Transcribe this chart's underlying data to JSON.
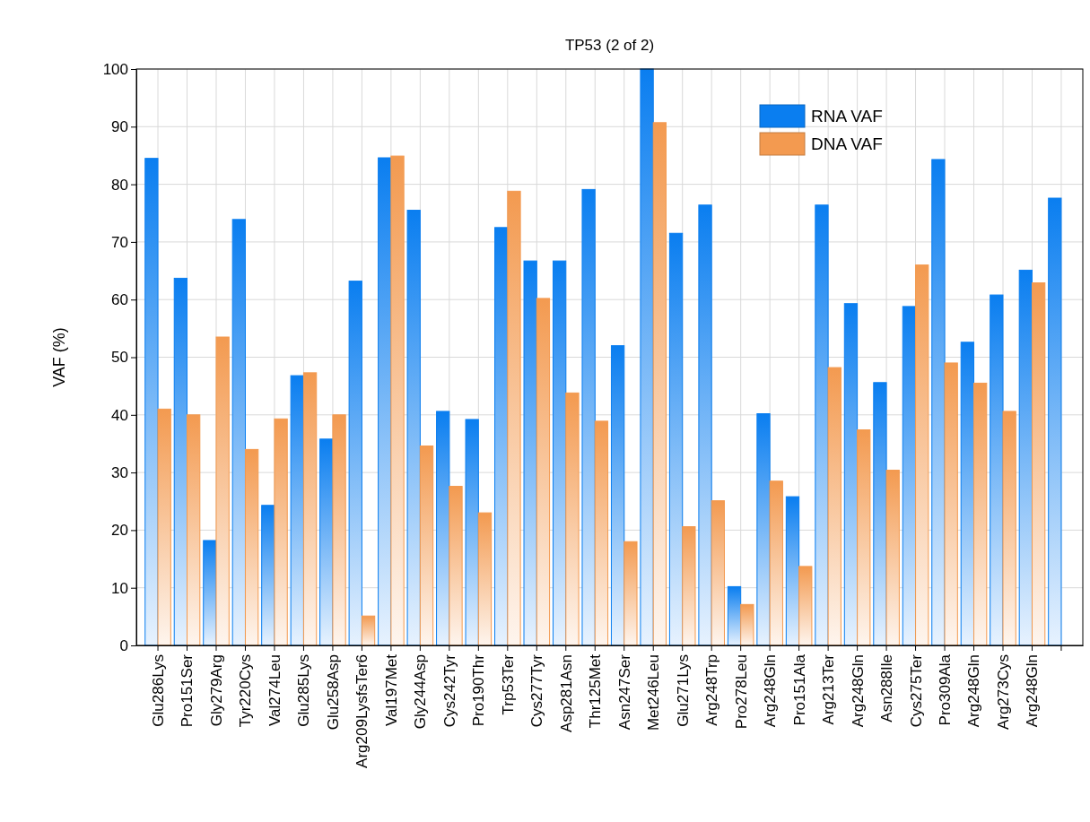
{
  "chart_data": {
    "type": "bar",
    "title": "TP53 (2 of 2)",
    "ylabel": "VAF (%)",
    "categories": [
      "Glu286Lys",
      "Pro151Ser",
      "Gly279Arg",
      "Tyr220Cys",
      "Val274Leu",
      "Glu285Lys",
      "Glu258Asp",
      "Arg209LysfsTer6",
      "Val197Met",
      "Gly244Asp",
      "Cys242Tyr",
      "Pro190Thr",
      "Trp53Ter",
      "Cys277Tyr",
      "Asp281Asn",
      "Thr125Met",
      "Asn247Ser",
      "Met246Leu",
      "Glu271Lys",
      "Arg248Trp",
      "Pro278Leu",
      "Arg248Gln",
      "Pro151Ala",
      "Arg213Ter",
      "Arg248Gln",
      "Asn288Ile",
      "Cys275Ter",
      "Pro309Ala",
      "Arg248Gln",
      "Arg273Cys",
      "Arg248Gln",
      null
    ],
    "series": [
      {
        "name": "RNA VAF",
        "color": "#0a7ef0",
        "values": [
          84.5,
          63.7,
          18.2,
          73.9,
          24.3,
          46.8,
          35.8,
          63.2,
          84.6,
          75.5,
          40.6,
          39.2,
          72.5,
          66.7,
          66.7,
          79.1,
          52,
          100,
          71.5,
          76.4,
          10.2,
          40.2,
          25.8,
          76.4,
          59.3,
          45.6,
          58.8,
          84.3,
          52.6,
          60.8,
          65.1,
          77.6
        ]
      },
      {
        "name": "DNA VAF",
        "color": "#f39a50",
        "values": [
          41,
          40,
          53.5,
          34,
          39.3,
          47.3,
          40,
          5.1,
          84.9,
          34.6,
          27.6,
          23,
          78.8,
          60.2,
          43.8,
          38.9,
          18,
          90.7,
          20.6,
          25.1,
          7.1,
          28.5,
          13.7,
          48.2,
          37.4,
          30.4,
          66,
          49,
          45.5,
          40.6,
          62.9,
          null
        ]
      }
    ],
    "ylim": [
      0,
      100
    ],
    "yticks": [
      0,
      10,
      20,
      30,
      40,
      50,
      60,
      70,
      80,
      90,
      100
    ],
    "grid": true,
    "legend": "top right"
  }
}
